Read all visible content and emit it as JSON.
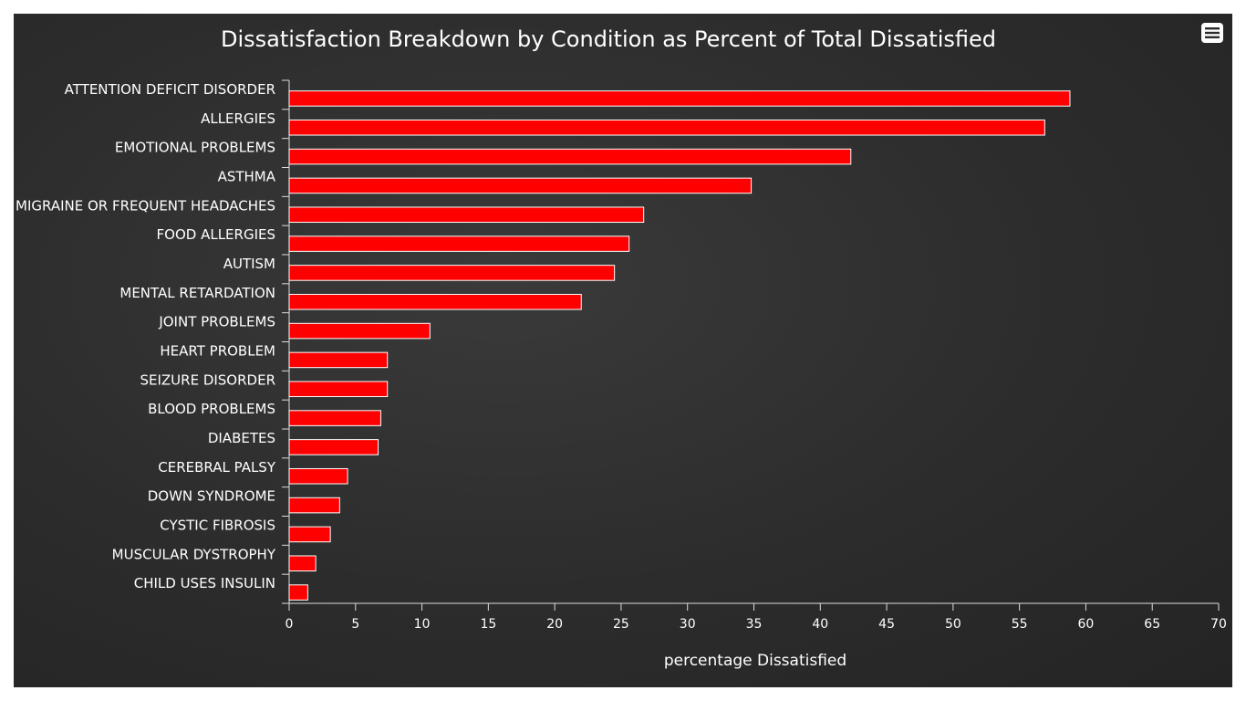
{
  "colors": {
    "bar": "#ff0000",
    "bar_border": "#ffffff",
    "text": "#ffffff",
    "axis": "#dddddd"
  },
  "menu": {
    "icon": "hamburger-menu-icon"
  },
  "chart_data": {
    "type": "bar",
    "orientation": "horizontal",
    "title": "Dissatisfaction Breakdown by Condition as Percent of Total Dissatisfied",
    "xlabel": "percentage Dissatisfied",
    "ylabel": "",
    "xlim": [
      0,
      70
    ],
    "xticks": [
      0,
      5,
      10,
      15,
      20,
      25,
      30,
      35,
      40,
      45,
      50,
      55,
      60,
      65,
      70
    ],
    "grid": false,
    "legend": "none",
    "categories": [
      "ATTENTION DEFICIT DISORDER",
      "ALLERGIES",
      "EMOTIONAL PROBLEMS",
      "ASTHMA",
      "MIGRAINE OR FREQUENT HEADACHES",
      "FOOD ALLERGIES",
      "AUTISM",
      "MENTAL RETARDATION",
      "JOINT PROBLEMS",
      "HEART PROBLEM",
      "SEIZURE DISORDER",
      "BLOOD PROBLEMS",
      "DIABETES",
      "CEREBRAL PALSY",
      "DOWN SYNDROME",
      "CYSTIC FIBROSIS",
      "MUSCULAR DYSTROPHY",
      "CHILD USES INSULIN"
    ],
    "values": [
      58.8,
      56.9,
      42.3,
      34.8,
      26.7,
      25.6,
      24.5,
      22.0,
      10.6,
      7.4,
      7.4,
      6.9,
      6.7,
      4.4,
      3.8,
      3.1,
      2.0,
      1.4
    ]
  }
}
